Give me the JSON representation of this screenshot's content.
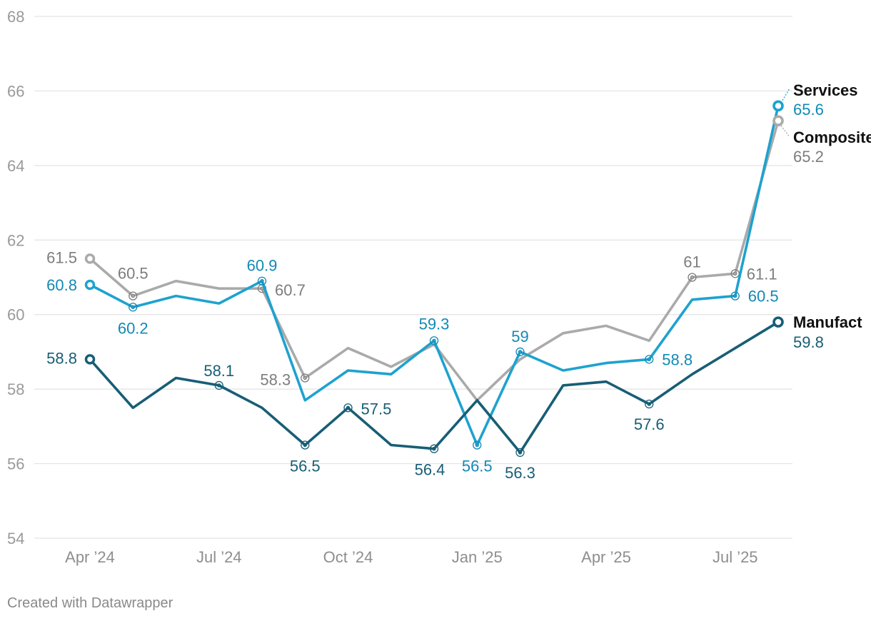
{
  "footer": {
    "credit": "Created with Datawrapper"
  },
  "chart_data": {
    "type": "line",
    "x": [
      "Apr 2024",
      "May 2024",
      "Jun 2024",
      "Jul 2024",
      "Aug 2024",
      "Sep 2024",
      "Oct 2024",
      "Nov 2024",
      "Dec 2024",
      "Jan 2025",
      "Feb 2025",
      "Mar 2025",
      "Apr 2025",
      "May 2025",
      "Jun 2025",
      "Jul 2025",
      "Aug 2025"
    ],
    "xticks": [
      {
        "index": 0,
        "label": "Apr ’24"
      },
      {
        "index": 3,
        "label": "Jul ’24"
      },
      {
        "index": 6,
        "label": "Oct ’24"
      },
      {
        "index": 9,
        "label": "Jan ’25"
      },
      {
        "index": 12,
        "label": "Apr ’25"
      },
      {
        "index": 15,
        "label": "Jul ’25"
      }
    ],
    "yticks": [
      "54",
      "56",
      "58",
      "60",
      "62",
      "64",
      "66",
      "68"
    ],
    "ylim": [
      54,
      68
    ],
    "grid": true,
    "series": [
      {
        "name": "Composite",
        "color": "#aaaaaa",
        "label_color": "#7d7d7d",
        "values": [
          61.5,
          60.5,
          60.9,
          60.7,
          60.7,
          58.3,
          59.1,
          58.6,
          59.2,
          57.7,
          58.8,
          59.5,
          59.7,
          59.3,
          61.0,
          61.1,
          65.2
        ],
        "annotations": [
          {
            "index": 0,
            "text": "61.5"
          },
          {
            "index": 1,
            "text": "60.5"
          },
          {
            "index": 4,
            "text": "60.7"
          },
          {
            "index": 5,
            "text": "58.3"
          },
          {
            "index": 14,
            "text": "61"
          },
          {
            "index": 15,
            "text": "61.1"
          }
        ],
        "end_value": "65.2"
      },
      {
        "name": "Services",
        "color": "#1ea2cf",
        "label_color": "#1289b5",
        "values": [
          60.8,
          60.2,
          60.5,
          60.3,
          60.9,
          57.7,
          58.5,
          58.4,
          59.3,
          56.5,
          59.0,
          58.5,
          58.7,
          58.8,
          60.4,
          60.5,
          65.6
        ],
        "annotations": [
          {
            "index": 0,
            "text": "60.8"
          },
          {
            "index": 1,
            "text": "60.2"
          },
          {
            "index": 4,
            "text": "60.9"
          },
          {
            "index": 8,
            "text": "59.3"
          },
          {
            "index": 9,
            "text": "56.5"
          },
          {
            "index": 10,
            "text": "59"
          },
          {
            "index": 13,
            "text": "58.8"
          },
          {
            "index": 15,
            "text": "60.5"
          }
        ],
        "end_value": "65.6"
      },
      {
        "name": "Manufact",
        "color": "#175e75",
        "label_color": "#175e75",
        "values": [
          58.8,
          57.5,
          58.3,
          58.1,
          57.5,
          56.5,
          57.5,
          56.5,
          56.4,
          57.7,
          56.3,
          58.1,
          58.2,
          57.6,
          58.4,
          59.1,
          59.8
        ],
        "annotations": [
          {
            "index": 0,
            "text": "58.8"
          },
          {
            "index": 3,
            "text": "58.1"
          },
          {
            "index": 5,
            "text": "56.5"
          },
          {
            "index": 6,
            "text": "57.5"
          },
          {
            "index": 8,
            "text": "56.4"
          },
          {
            "index": 10,
            "text": "56.3"
          },
          {
            "index": 13,
            "text": "57.6"
          }
        ],
        "end_value": "59.8"
      }
    ]
  }
}
